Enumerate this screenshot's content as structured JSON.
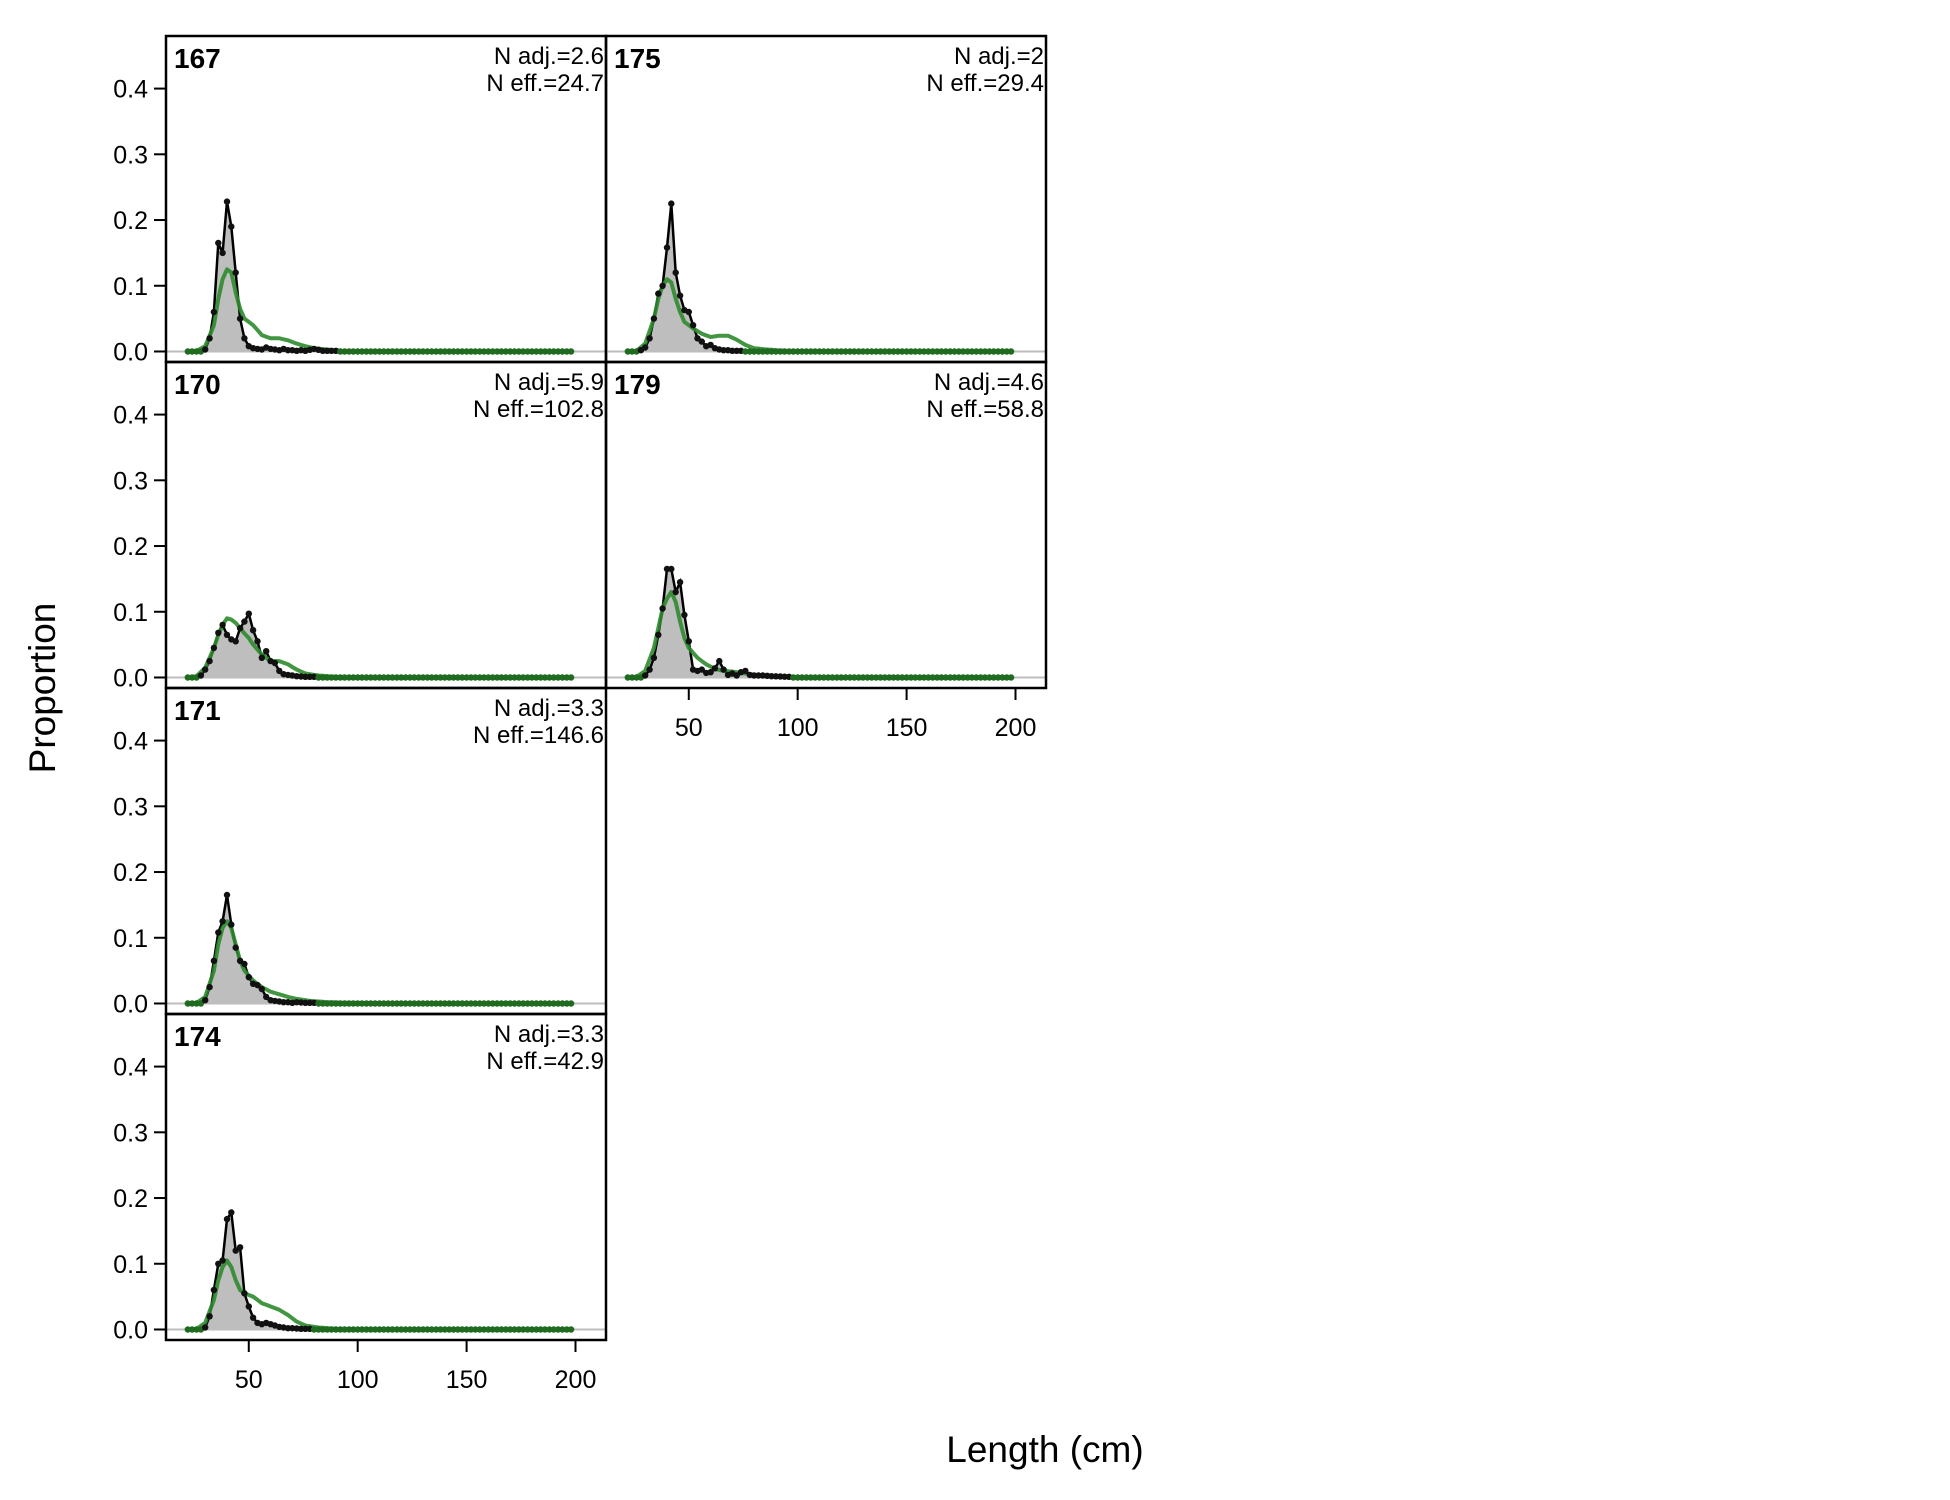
{
  "chart_data": {
    "type": "area",
    "xlabel": "Length (cm)",
    "ylabel": "Proportion",
    "xlim": [
      12,
      214
    ],
    "ylim": [
      -0.016,
      0.48
    ],
    "x_ticks": [
      50,
      100,
      150,
      200
    ],
    "y_ticks": [
      0.0,
      0.1,
      0.2,
      0.3,
      0.4
    ],
    "x_tick_labels": [
      "50",
      "100",
      "150",
      "200"
    ],
    "y_tick_labels": [
      "0.0",
      "0.1",
      "0.2",
      "0.3",
      "0.4"
    ],
    "bin_start": 22,
    "bin_width": 2,
    "bin_count": 89,
    "colors": {
      "observed_fill": "#bebebe",
      "observed_line": "#000000",
      "expected_line": "#2e8b2e",
      "zero_line": "#bebebe",
      "points_tail": "#1f6b1f"
    },
    "panels": [
      {
        "label": "167",
        "n_adj": "N adj.=2.6",
        "n_eff": "N eff.=24.7",
        "observed": [
          [
            22,
            0
          ],
          [
            24,
            0
          ],
          [
            26,
            0
          ],
          [
            28,
            0
          ],
          [
            30,
            0.003
          ],
          [
            32,
            0.02
          ],
          [
            34,
            0.06
          ],
          [
            36,
            0.165
          ],
          [
            38,
            0.15
          ],
          [
            40,
            0.228
          ],
          [
            42,
            0.19
          ],
          [
            44,
            0.12
          ],
          [
            46,
            0.05
          ],
          [
            48,
            0.02
          ],
          [
            50,
            0.008
          ],
          [
            52,
            0.005
          ],
          [
            54,
            0.004
          ],
          [
            56,
            0.003
          ],
          [
            58,
            0.006
          ],
          [
            60,
            0.004
          ],
          [
            62,
            0.003
          ],
          [
            64,
            0.002
          ],
          [
            66,
            0.004
          ],
          [
            68,
            0.002
          ],
          [
            70,
            0.002
          ],
          [
            72,
            0.001
          ],
          [
            74,
            0.002
          ],
          [
            76,
            0.001
          ],
          [
            80,
            0.004
          ],
          [
            84,
            0.001
          ],
          [
            90,
            0.001
          ]
        ],
        "expected": [
          [
            22,
            0
          ],
          [
            26,
            0.001
          ],
          [
            30,
            0.008
          ],
          [
            34,
            0.04
          ],
          [
            36,
            0.08
          ],
          [
            38,
            0.11
          ],
          [
            40,
            0.125
          ],
          [
            42,
            0.12
          ],
          [
            44,
            0.09
          ],
          [
            46,
            0.065
          ],
          [
            48,
            0.05
          ],
          [
            52,
            0.04
          ],
          [
            56,
            0.025
          ],
          [
            60,
            0.02
          ],
          [
            64,
            0.02
          ],
          [
            68,
            0.017
          ],
          [
            72,
            0.012
          ],
          [
            76,
            0.008
          ],
          [
            80,
            0.005
          ],
          [
            86,
            0.003
          ],
          [
            92,
            0.001
          ],
          [
            100,
            0.0005
          ],
          [
            120,
            0
          ],
          [
            200,
            0
          ]
        ]
      },
      {
        "label": "170",
        "n_adj": "N adj.=5.9",
        "n_eff": "N eff.=102.8",
        "observed": [
          [
            22,
            0
          ],
          [
            24,
            0
          ],
          [
            26,
            0
          ],
          [
            28,
            0.003
          ],
          [
            30,
            0.012
          ],
          [
            32,
            0.025
          ],
          [
            34,
            0.045
          ],
          [
            36,
            0.068
          ],
          [
            38,
            0.08
          ],
          [
            40,
            0.065
          ],
          [
            42,
            0.058
          ],
          [
            44,
            0.055
          ],
          [
            46,
            0.075
          ],
          [
            48,
            0.085
          ],
          [
            50,
            0.097
          ],
          [
            52,
            0.072
          ],
          [
            54,
            0.055
          ],
          [
            56,
            0.03
          ],
          [
            58,
            0.04
          ],
          [
            60,
            0.025
          ],
          [
            62,
            0.022
          ],
          [
            64,
            0.01
          ],
          [
            66,
            0.005
          ],
          [
            68,
            0.004
          ],
          [
            70,
            0.003
          ],
          [
            72,
            0.002
          ],
          [
            76,
            0.001
          ],
          [
            80,
            0.001
          ]
        ],
        "expected": [
          [
            22,
            0
          ],
          [
            26,
            0.002
          ],
          [
            30,
            0.015
          ],
          [
            34,
            0.045
          ],
          [
            36,
            0.065
          ],
          [
            38,
            0.08
          ],
          [
            40,
            0.09
          ],
          [
            42,
            0.088
          ],
          [
            44,
            0.083
          ],
          [
            46,
            0.075
          ],
          [
            48,
            0.067
          ],
          [
            50,
            0.06
          ],
          [
            52,
            0.05
          ],
          [
            56,
            0.035
          ],
          [
            60,
            0.025
          ],
          [
            64,
            0.025
          ],
          [
            68,
            0.02
          ],
          [
            72,
            0.012
          ],
          [
            76,
            0.006
          ],
          [
            82,
            0.003
          ],
          [
            90,
            0.001
          ],
          [
            100,
            0.0005
          ],
          [
            120,
            0
          ],
          [
            200,
            0
          ]
        ]
      },
      {
        "label": "171",
        "n_adj": "N adj.=3.3",
        "n_eff": "N eff.=146.6",
        "observed": [
          [
            22,
            0
          ],
          [
            24,
            0
          ],
          [
            26,
            0
          ],
          [
            28,
            0
          ],
          [
            30,
            0.005
          ],
          [
            32,
            0.025
          ],
          [
            34,
            0.065
          ],
          [
            36,
            0.108
          ],
          [
            38,
            0.125
          ],
          [
            40,
            0.165
          ],
          [
            42,
            0.12
          ],
          [
            44,
            0.085
          ],
          [
            46,
            0.065
          ],
          [
            48,
            0.06
          ],
          [
            50,
            0.04
          ],
          [
            52,
            0.03
          ],
          [
            54,
            0.028
          ],
          [
            56,
            0.022
          ],
          [
            58,
            0.01
          ],
          [
            60,
            0.005
          ],
          [
            62,
            0.004
          ],
          [
            64,
            0.003
          ],
          [
            66,
            0.002
          ],
          [
            68,
            0.002
          ],
          [
            70,
            0.001
          ],
          [
            72,
            0.002
          ],
          [
            76,
            0.001
          ],
          [
            80,
            0.001
          ]
        ],
        "expected": [
          [
            22,
            0
          ],
          [
            26,
            0.001
          ],
          [
            30,
            0.01
          ],
          [
            34,
            0.05
          ],
          [
            36,
            0.09
          ],
          [
            38,
            0.115
          ],
          [
            40,
            0.125
          ],
          [
            42,
            0.115
          ],
          [
            44,
            0.09
          ],
          [
            46,
            0.065
          ],
          [
            48,
            0.05
          ],
          [
            52,
            0.035
          ],
          [
            56,
            0.025
          ],
          [
            60,
            0.018
          ],
          [
            64,
            0.014
          ],
          [
            68,
            0.01
          ],
          [
            72,
            0.007
          ],
          [
            78,
            0.004
          ],
          [
            86,
            0.002
          ],
          [
            96,
            0.001
          ],
          [
            120,
            0
          ],
          [
            200,
            0
          ]
        ]
      },
      {
        "label": "174",
        "n_adj": "N adj.=3.3",
        "n_eff": "N eff.=42.9",
        "observed": [
          [
            22,
            0
          ],
          [
            24,
            0
          ],
          [
            26,
            0
          ],
          [
            28,
            0
          ],
          [
            30,
            0.003
          ],
          [
            32,
            0.02
          ],
          [
            34,
            0.06
          ],
          [
            36,
            0.1
          ],
          [
            38,
            0.105
          ],
          [
            40,
            0.168
          ],
          [
            42,
            0.178
          ],
          [
            44,
            0.12
          ],
          [
            46,
            0.125
          ],
          [
            48,
            0.055
          ],
          [
            50,
            0.035
          ],
          [
            52,
            0.018
          ],
          [
            54,
            0.01
          ],
          [
            56,
            0.008
          ],
          [
            58,
            0.01
          ],
          [
            60,
            0.008
          ],
          [
            62,
            0.006
          ],
          [
            64,
            0.004
          ],
          [
            66,
            0.003
          ],
          [
            68,
            0.002
          ],
          [
            70,
            0.002
          ],
          [
            74,
            0.001
          ],
          [
            78,
            0.001
          ]
        ],
        "expected": [
          [
            22,
            0
          ],
          [
            26,
            0.001
          ],
          [
            30,
            0.01
          ],
          [
            34,
            0.045
          ],
          [
            36,
            0.075
          ],
          [
            38,
            0.095
          ],
          [
            40,
            0.105
          ],
          [
            42,
            0.095
          ],
          [
            44,
            0.075
          ],
          [
            46,
            0.06
          ],
          [
            48,
            0.055
          ],
          [
            52,
            0.05
          ],
          [
            56,
            0.04
          ],
          [
            60,
            0.035
          ],
          [
            64,
            0.03
          ],
          [
            68,
            0.022
          ],
          [
            72,
            0.012
          ],
          [
            76,
            0.006
          ],
          [
            82,
            0.003
          ],
          [
            90,
            0.001
          ],
          [
            100,
            0.0005
          ],
          [
            120,
            0
          ],
          [
            200,
            0
          ]
        ]
      },
      {
        "label": "175",
        "n_adj": "N adj.=2",
        "n_eff": "N eff.=29.4",
        "observed": [
          [
            22,
            0
          ],
          [
            24,
            0
          ],
          [
            26,
            0
          ],
          [
            28,
            0.002
          ],
          [
            30,
            0.006
          ],
          [
            32,
            0.02
          ],
          [
            34,
            0.05
          ],
          [
            36,
            0.088
          ],
          [
            38,
            0.1
          ],
          [
            40,
            0.158
          ],
          [
            42,
            0.225
          ],
          [
            44,
            0.12
          ],
          [
            46,
            0.085
          ],
          [
            48,
            0.063
          ],
          [
            50,
            0.06
          ],
          [
            52,
            0.04
          ],
          [
            54,
            0.02
          ],
          [
            56,
            0.015
          ],
          [
            58,
            0.008
          ],
          [
            60,
            0.01
          ],
          [
            62,
            0.005
          ],
          [
            64,
            0.003
          ],
          [
            66,
            0.002
          ],
          [
            68,
            0.002
          ],
          [
            70,
            0.001
          ],
          [
            74,
            0.001
          ]
        ],
        "expected": [
          [
            22,
            0
          ],
          [
            26,
            0.001
          ],
          [
            30,
            0.012
          ],
          [
            34,
            0.05
          ],
          [
            36,
            0.08
          ],
          [
            38,
            0.1
          ],
          [
            40,
            0.11
          ],
          [
            42,
            0.105
          ],
          [
            44,
            0.08
          ],
          [
            46,
            0.06
          ],
          [
            48,
            0.045
          ],
          [
            52,
            0.035
          ],
          [
            56,
            0.027
          ],
          [
            60,
            0.022
          ],
          [
            64,
            0.024
          ],
          [
            68,
            0.024
          ],
          [
            72,
            0.018
          ],
          [
            76,
            0.01
          ],
          [
            80,
            0.005
          ],
          [
            86,
            0.003
          ],
          [
            94,
            0.001
          ],
          [
            110,
            0
          ],
          [
            200,
            0
          ]
        ]
      },
      {
        "label": "179",
        "n_adj": "N adj.=4.6",
        "n_eff": "N eff.=58.8",
        "observed": [
          [
            22,
            0
          ],
          [
            24,
            0
          ],
          [
            26,
            0
          ],
          [
            28,
            0
          ],
          [
            30,
            0.003
          ],
          [
            32,
            0.012
          ],
          [
            34,
            0.03
          ],
          [
            36,
            0.065
          ],
          [
            38,
            0.105
          ],
          [
            40,
            0.165
          ],
          [
            42,
            0.165
          ],
          [
            44,
            0.13
          ],
          [
            46,
            0.145
          ],
          [
            48,
            0.095
          ],
          [
            50,
            0.055
          ],
          [
            52,
            0.012
          ],
          [
            54,
            0.01
          ],
          [
            56,
            0.012
          ],
          [
            58,
            0.007
          ],
          [
            60,
            0.008
          ],
          [
            62,
            0.014
          ],
          [
            64,
            0.025
          ],
          [
            66,
            0.012
          ],
          [
            68,
            0.004
          ],
          [
            70,
            0.006
          ],
          [
            72,
            0.003
          ],
          [
            74,
            0.008
          ],
          [
            76,
            0.01
          ],
          [
            78,
            0.004
          ],
          [
            80,
            0.003
          ],
          [
            84,
            0.003
          ],
          [
            88,
            0.002
          ],
          [
            96,
            0.001
          ]
        ],
        "expected": [
          [
            22,
            0
          ],
          [
            26,
            0.001
          ],
          [
            30,
            0.01
          ],
          [
            34,
            0.045
          ],
          [
            36,
            0.075
          ],
          [
            38,
            0.105
          ],
          [
            40,
            0.12
          ],
          [
            42,
            0.13
          ],
          [
            44,
            0.115
          ],
          [
            46,
            0.085
          ],
          [
            48,
            0.06
          ],
          [
            50,
            0.045
          ],
          [
            54,
            0.03
          ],
          [
            58,
            0.02
          ],
          [
            62,
            0.013
          ],
          [
            66,
            0.01
          ],
          [
            70,
            0.009
          ],
          [
            74,
            0.007
          ],
          [
            78,
            0.005
          ],
          [
            84,
            0.003
          ],
          [
            92,
            0.001
          ],
          [
            110,
            0
          ],
          [
            200,
            0
          ]
        ]
      }
    ]
  }
}
